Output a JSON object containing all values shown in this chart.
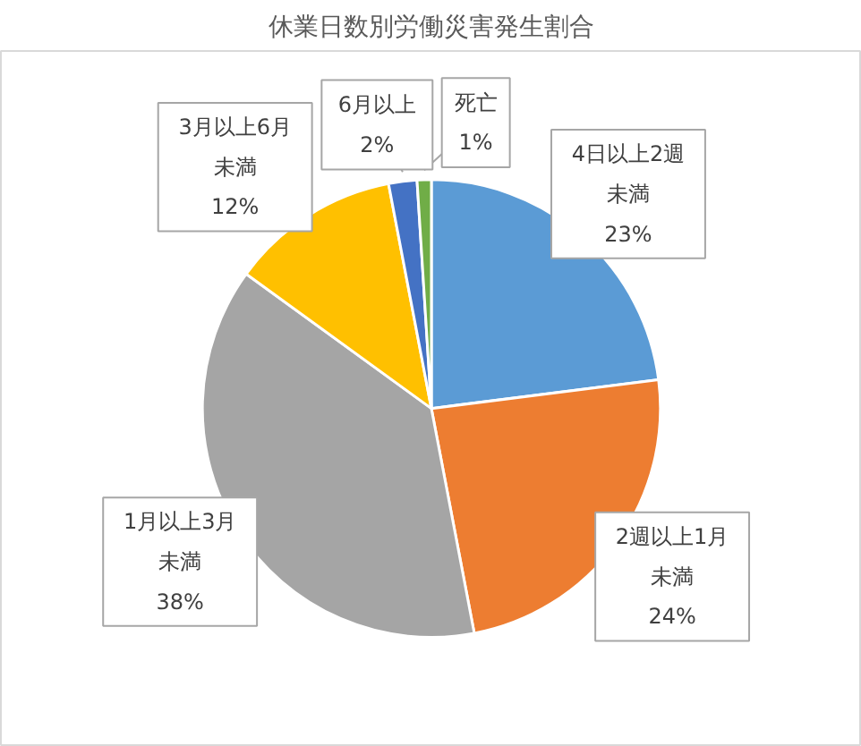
{
  "chart_data": {
    "type": "pie",
    "title": "休業日数別労働災害発生割合",
    "categories": [
      "4日以上2週未満",
      "2週以上1月未満",
      "1月以上3月未満",
      "3月以上6月未満",
      "6月以上",
      "死亡"
    ],
    "values": [
      23,
      24,
      38,
      12,
      2,
      1
    ],
    "value_labels": [
      "23%",
      "24%",
      "38%",
      "12%",
      "2%",
      "1%"
    ],
    "colors": [
      "#5b9bd5",
      "#ed7d31",
      "#a5a5a5",
      "#ffc000",
      "#4472c4",
      "#70ad47"
    ]
  }
}
